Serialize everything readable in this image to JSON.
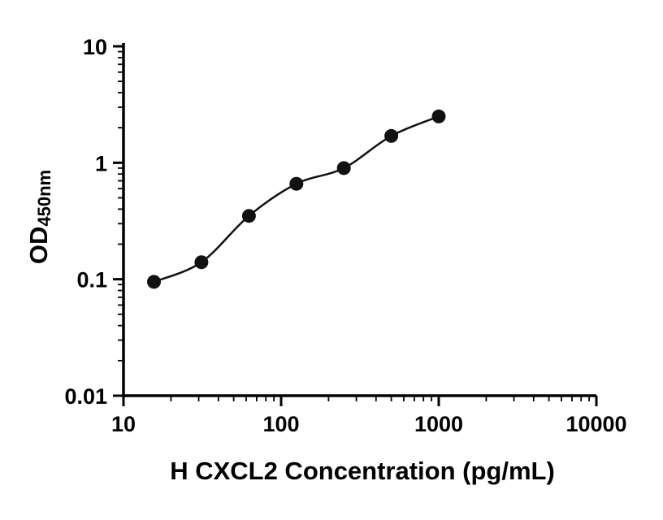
{
  "chart_data": {
    "type": "scatter",
    "title": "",
    "xlabel": "H CXCL2 Concentration (pg/mL)",
    "ylabel_main": "OD",
    "ylabel_sub": "450nm",
    "xscale": "log",
    "yscale": "log",
    "grid": false,
    "x": [
      15.6,
      31.2,
      62.5,
      125,
      250,
      500,
      1000
    ],
    "y": [
      0.095,
      0.14,
      0.35,
      0.66,
      0.9,
      1.7,
      2.5
    ],
    "xlim": [
      10,
      10000
    ],
    "ylim": [
      0.01,
      10
    ],
    "x_ticks": [
      10,
      100,
      1000,
      10000
    ],
    "x_tick_labels": [
      "10",
      "100",
      "1000",
      "10000"
    ],
    "y_ticks": [
      0.01,
      0.1,
      1,
      10
    ],
    "y_tick_labels": [
      "0.01",
      "0.1",
      "1",
      "10"
    ],
    "axis_color": "#000000",
    "marker_color": "#111111",
    "line_color": "#111111"
  }
}
